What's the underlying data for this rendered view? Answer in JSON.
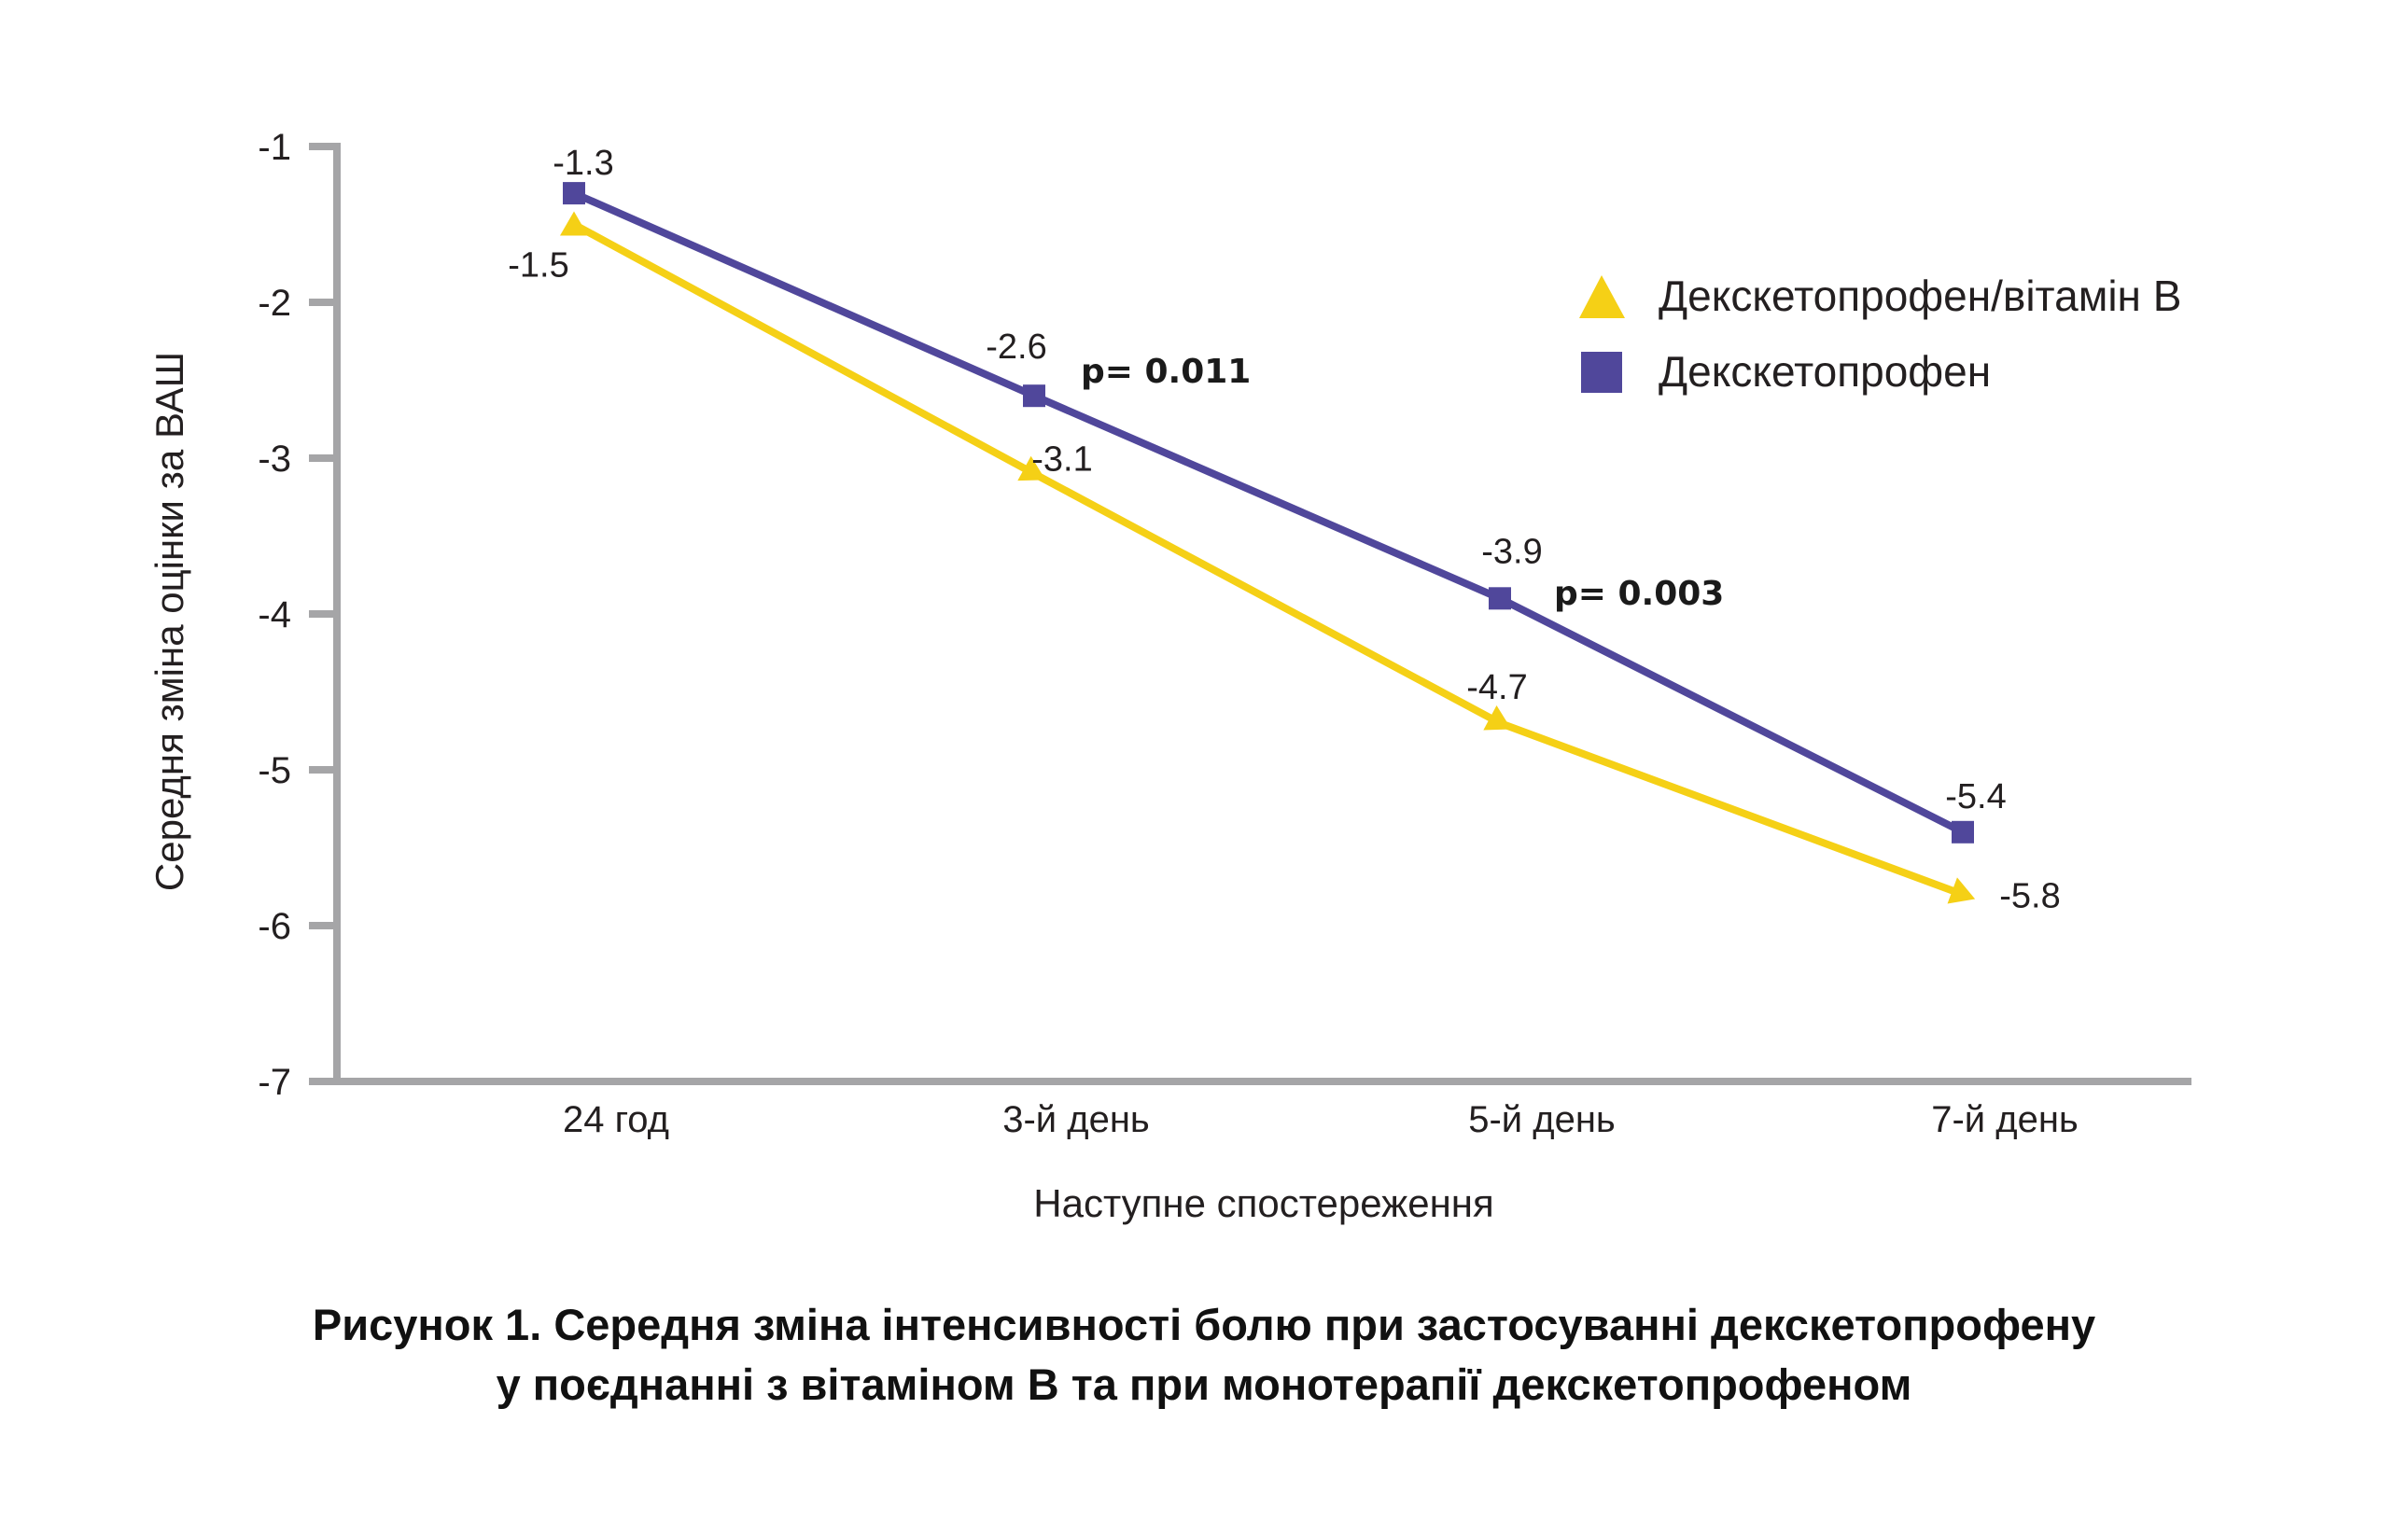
{
  "chart_data": {
    "type": "line",
    "title": "",
    "xlabel": "Наступне спостереження",
    "ylabel": "Середня зміна оцінки за ВАШ",
    "categories": [
      "24 год",
      "3-й день",
      "5-й день",
      "7-й день"
    ],
    "ylim": [
      -7,
      -1
    ],
    "yticks": [
      -1,
      -2,
      -3,
      -4,
      -5,
      -6,
      -7
    ],
    "ytick_labels": [
      "-1",
      "-2",
      "-3",
      "-4",
      "-5",
      "-6",
      "-7"
    ],
    "grid": false,
    "legend_position": "top-right",
    "series": [
      {
        "name": "Декскетопрофен/вітамін В",
        "marker": "triangle",
        "color": "#F5D016",
        "values": [
          -1.5,
          -3.1,
          -4.7,
          -5.8
        ],
        "labels": [
          "-1.5",
          "-3.1",
          "-4.7",
          "-5.8"
        ]
      },
      {
        "name": "Декскетопрофен",
        "marker": "square",
        "color": "#50479B",
        "values": [
          -1.3,
          -2.6,
          -3.9,
          -5.4
        ],
        "labels": [
          "-1.3",
          "-2.6",
          "-3.9",
          "-5.4"
        ]
      }
    ],
    "annotations": [
      {
        "category": "3-й день",
        "series": "Декскетопрофен",
        "text": "p= 0.011"
      },
      {
        "category": "5-й день",
        "series": "Декскетопрофен",
        "text": "p= 0.003"
      }
    ],
    "axis_color": "#A5A5A7"
  },
  "caption": {
    "line1": "Рисунок 1. Середня зміна інтенсивності болю при застосуванні декскетопрофену",
    "line2": "у поєднанні з вітаміном В та при монотерапії декскетопрофеном"
  }
}
